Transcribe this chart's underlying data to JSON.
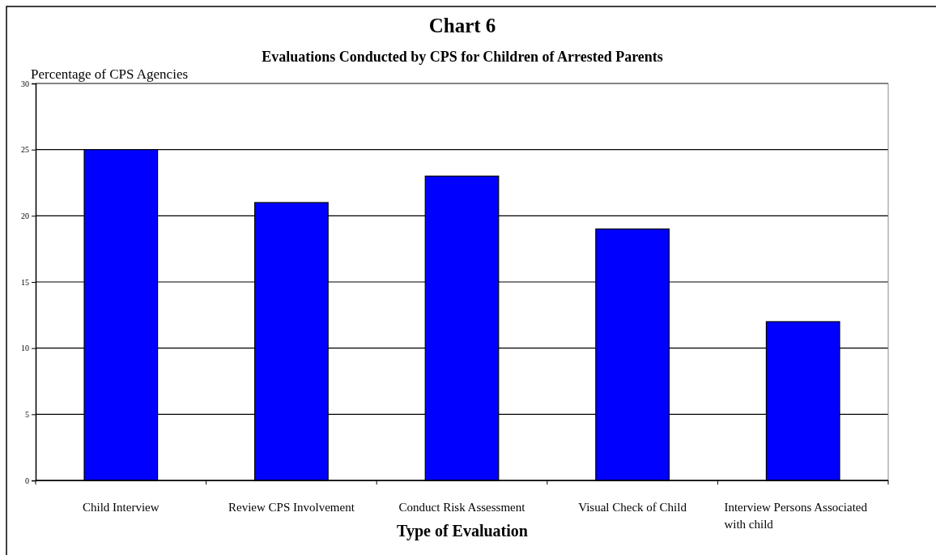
{
  "chart_data": {
    "type": "bar",
    "title": "Chart 6",
    "subtitle": "Evaluations Conducted by CPS for Children of Arrested Parents",
    "xlabel": "Type of Evaluation",
    "ylabel": "Percentage of CPS Agencies",
    "categories": [
      "Child Interview",
      "Review CPS Involvement",
      "Conduct Risk Assessment",
      "Visual Check of Child",
      "Interview Persons Associated with child"
    ],
    "values": [
      25,
      21,
      23,
      19,
      12
    ],
    "color": "#0000ff",
    "ylim": [
      0,
      30
    ],
    "yticks": [
      0,
      5,
      10,
      15,
      20,
      25,
      30
    ],
    "grid": "y"
  }
}
